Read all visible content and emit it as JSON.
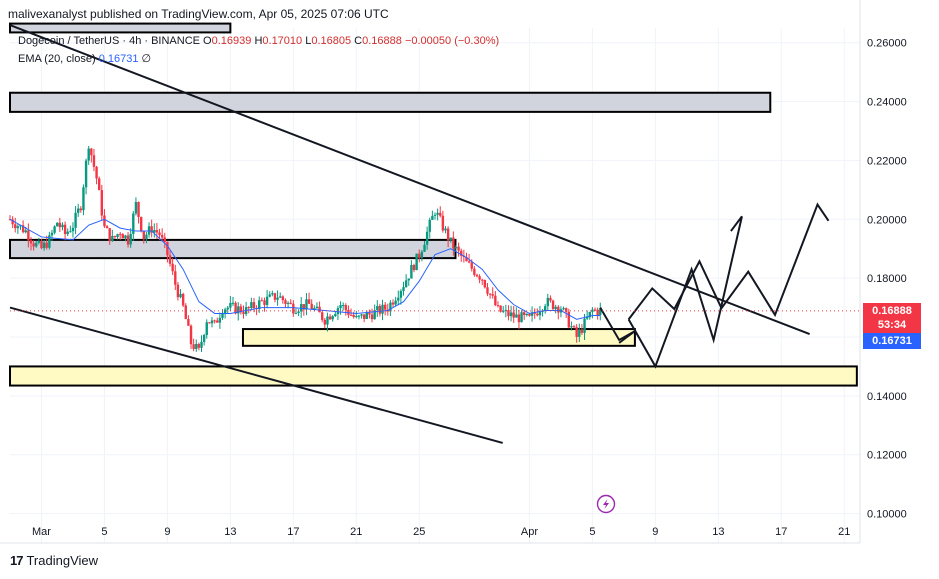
{
  "header": {
    "publisher": "malivexanalyst published on TradingView.com, Apr 05, 2025 07:06 UTC"
  },
  "legend": {
    "symbol": "Dogecoin / TetherUS · 4h · BINANCE",
    "open_label": "O",
    "open": "0.16939",
    "high_label": "H",
    "high": "0.17010",
    "low_label": "L",
    "low": "0.16805",
    "close_label": "C",
    "close": "0.16888",
    "change": "−0.00050 (−0.30%)",
    "ema_label": "EMA (20, close)",
    "ema_value": "0.16731",
    "ema_extra": "∅"
  },
  "price_tags": {
    "last_price": "0.16888",
    "countdown": "53:34",
    "ema_price": "0.16731",
    "last_color": "#f23645",
    "ema_color": "#2962ff"
  },
  "logo": {
    "text": "TradingView"
  },
  "colors": {
    "up": "#089981",
    "down": "#f23645",
    "ema": "#2962ff",
    "resistance_zone": "#d1d4dc",
    "support_zone": "#fff9c4"
  },
  "icons": {
    "flash": "lightning-bolt-icon"
  },
  "chart_data": {
    "type": "candlestick",
    "title": "",
    "xlabel": "",
    "ylabel": "",
    "ylim": [
      0.09,
      0.265
    ],
    "y_ticks": [
      "0.26000",
      "0.24000",
      "0.22000",
      "0.20000",
      "0.18000",
      "0.16000",
      "0.14000",
      "0.12000",
      "0.10000"
    ],
    "y_tick_values": [
      0.26,
      0.24,
      0.22,
      0.2,
      0.18,
      0.16,
      0.14,
      0.12,
      0.1
    ],
    "x_ticks": [
      "Mar",
      "5",
      "9",
      "13",
      "17",
      "21",
      "25",
      "Apr",
      "5",
      "9",
      "13",
      "17",
      "21"
    ],
    "x_tick_days": [
      0,
      4,
      8,
      12,
      16,
      20,
      24,
      31,
      35,
      39,
      43,
      47,
      51
    ],
    "x_range_days": [
      -2,
      52
    ],
    "grid": true,
    "close_path": [
      [
        -2,
        0.2
      ],
      [
        -1,
        0.196
      ],
      [
        -0.5,
        0.192
      ],
      [
        0,
        0.19
      ],
      [
        0.5,
        0.193
      ],
      [
        1,
        0.199
      ],
      [
        1.5,
        0.195
      ],
      [
        2,
        0.198
      ],
      [
        2.5,
        0.205
      ],
      [
        3,
        0.226
      ],
      [
        3.5,
        0.214
      ],
      [
        4,
        0.197
      ],
      [
        4.5,
        0.193
      ],
      [
        5,
        0.196
      ],
      [
        5.5,
        0.193
      ],
      [
        6,
        0.205
      ],
      [
        6.5,
        0.194
      ],
      [
        7,
        0.197
      ],
      [
        7.5,
        0.195
      ],
      [
        8,
        0.188
      ],
      [
        8.5,
        0.178
      ],
      [
        9,
        0.17
      ],
      [
        9.5,
        0.158
      ],
      [
        10,
        0.155
      ],
      [
        10.5,
        0.166
      ],
      [
        11,
        0.164
      ],
      [
        11.5,
        0.17
      ],
      [
        12,
        0.17
      ],
      [
        13,
        0.169
      ],
      [
        14,
        0.172
      ],
      [
        15,
        0.174
      ],
      [
        16,
        0.17
      ],
      [
        17,
        0.171
      ],
      [
        18,
        0.166
      ],
      [
        19,
        0.171
      ],
      [
        20,
        0.166
      ],
      [
        21,
        0.168
      ],
      [
        22,
        0.17
      ],
      [
        23,
        0.178
      ],
      [
        24,
        0.188
      ],
      [
        25,
        0.203
      ],
      [
        26,
        0.192
      ],
      [
        27,
        0.185
      ],
      [
        28,
        0.18
      ],
      [
        29,
        0.169
      ],
      [
        30,
        0.167
      ],
      [
        31,
        0.166
      ],
      [
        32,
        0.172
      ],
      [
        33,
        0.17
      ],
      [
        34,
        0.16
      ],
      [
        35,
        0.169
      ],
      [
        35.5,
        0.1689
      ]
    ],
    "ema_path": [
      [
        -2,
        0.2
      ],
      [
        0,
        0.194
      ],
      [
        2,
        0.193
      ],
      [
        3,
        0.198
      ],
      [
        4,
        0.2
      ],
      [
        5,
        0.197
      ],
      [
        6,
        0.196
      ],
      [
        7,
        0.196
      ],
      [
        8,
        0.191
      ],
      [
        9,
        0.183
      ],
      [
        10,
        0.172
      ],
      [
        11,
        0.168
      ],
      [
        12,
        0.168
      ],
      [
        14,
        0.17
      ],
      [
        16,
        0.17
      ],
      [
        18,
        0.169
      ],
      [
        20,
        0.168
      ],
      [
        22,
        0.169
      ],
      [
        23,
        0.172
      ],
      [
        24,
        0.179
      ],
      [
        25,
        0.188
      ],
      [
        26,
        0.19
      ],
      [
        27,
        0.187
      ],
      [
        28,
        0.183
      ],
      [
        29,
        0.176
      ],
      [
        30,
        0.171
      ],
      [
        31,
        0.168
      ],
      [
        32,
        0.169
      ],
      [
        33,
        0.169
      ],
      [
        34,
        0.166
      ],
      [
        35,
        0.1673
      ],
      [
        35.5,
        0.1673
      ]
    ],
    "zones": [
      {
        "kind": "resistance",
        "x": [
          -2,
          46.3
        ],
        "y": [
          0.2365,
          0.243
        ]
      },
      {
        "kind": "resistance",
        "x": [
          -2,
          12
        ],
        "y": [
          0.2635,
          0.2665
        ]
      },
      {
        "kind": "resistance",
        "x": [
          -2,
          26.3
        ],
        "y": [
          0.1868,
          0.193
        ]
      },
      {
        "kind": "support",
        "x": [
          12.8,
          37.7
        ],
        "y": [
          0.157,
          0.1627
        ]
      },
      {
        "kind": "support",
        "x": [
          -2,
          51.8
        ],
        "y": [
          0.1435,
          0.15
        ]
      }
    ],
    "trendlines": [
      {
        "from": [
          -2,
          0.266
        ],
        "to": [
          48.8,
          0.161
        ]
      },
      {
        "from": [
          -2,
          0.17
        ],
        "to": [
          29.3,
          0.124
        ]
      }
    ],
    "projection_1": [
      [
        35.5,
        0.17
      ],
      [
        36.7,
        0.159
      ],
      [
        37.7,
        0.162
      ],
      [
        36.7,
        0.158
      ]
    ],
    "projection_2": [
      [
        37.3,
        0.166
      ],
      [
        39,
        0.15
      ],
      [
        41.3,
        0.183
      ],
      [
        42.7,
        0.159
      ],
      [
        44.5,
        0.201
      ],
      [
        43.8,
        0.196
      ]
    ],
    "projection_3": [
      [
        37.3,
        0.166
      ],
      [
        38.8,
        0.1765
      ],
      [
        40.2,
        0.1695
      ],
      [
        41.8,
        0.1857
      ],
      [
        43.2,
        0.1698
      ],
      [
        44.9,
        0.1822
      ],
      [
        46.6,
        0.1675
      ],
      [
        49.3,
        0.205
      ],
      [
        50,
        0.1995
      ]
    ]
  }
}
